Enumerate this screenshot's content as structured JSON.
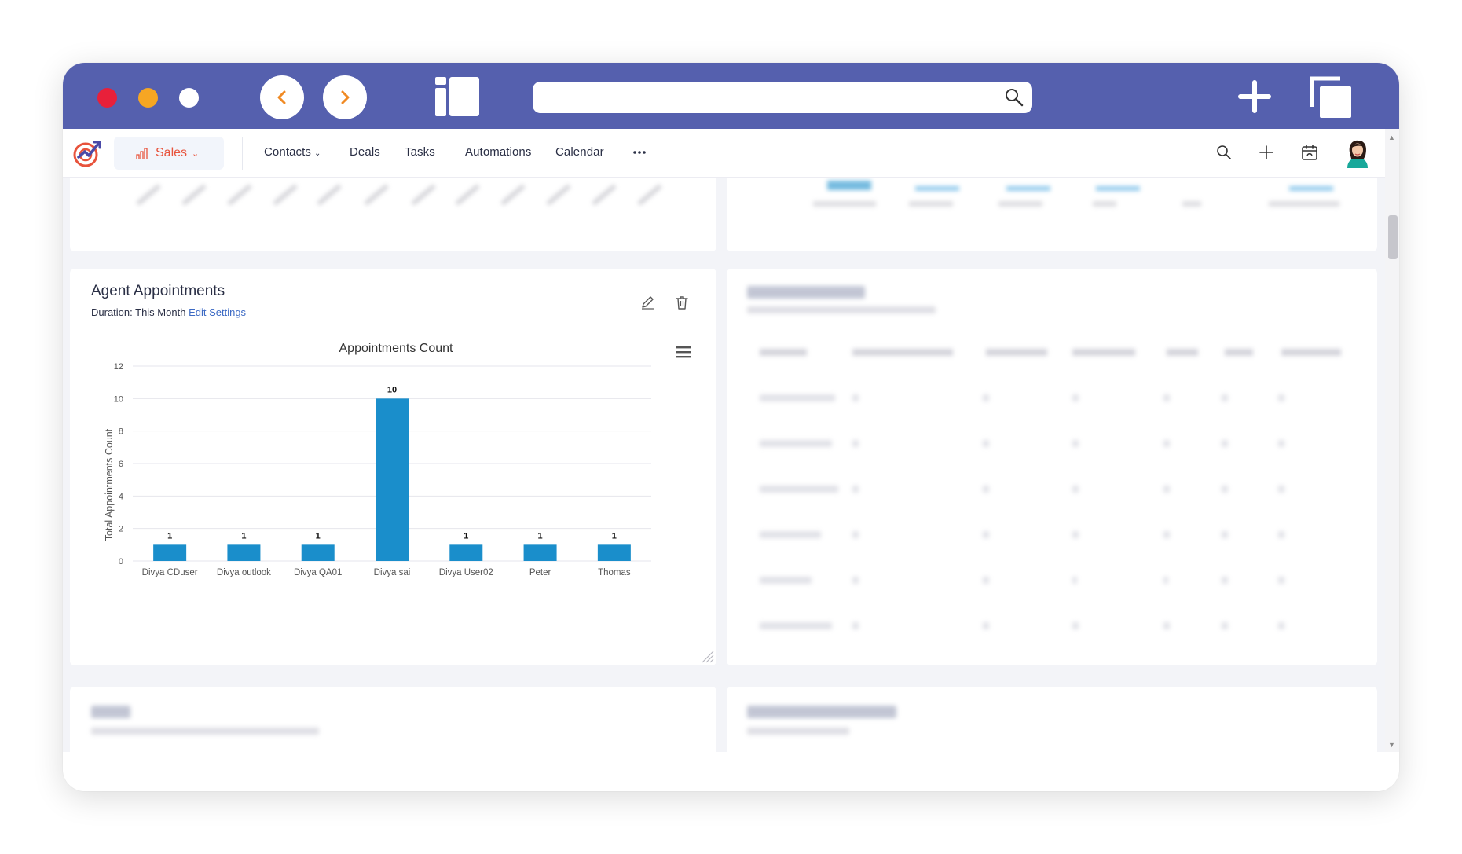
{
  "window": {
    "colors": {
      "titlebar": "#5560ae",
      "close": "#e8203a",
      "minimize": "#f6a623",
      "accent_orange": "#f08a24"
    },
    "url": ""
  },
  "appnav": {
    "module_label": "Sales",
    "links": [
      "Contacts",
      "Deals",
      "Tasks",
      "Automations",
      "Calendar"
    ],
    "more_icon": "ellipsis-icon",
    "right_icons": [
      "search-icon",
      "plus-icon",
      "calendar-icon",
      "avatar"
    ]
  },
  "agent_appointments": {
    "title": "Agent Appointments",
    "duration_label": "Duration: This Month",
    "edit_settings_label": "Edit Settings",
    "actions": [
      "edit-icon",
      "trash-icon"
    ],
    "menu_icon": "hamburger-menu-icon"
  },
  "chart_data": {
    "type": "bar",
    "title": "Appointments Count",
    "xlabel": "",
    "ylabel": "Total Appointments Count",
    "categories": [
      "Divya CDuser",
      "Divya outlook",
      "Divya QA01",
      "Divya sai",
      "Divya User02",
      "Peter",
      "Thomas"
    ],
    "values": [
      1,
      1,
      1,
      10,
      1,
      1,
      1
    ],
    "ylim": [
      0,
      12
    ],
    "yticks": [
      "0",
      "2",
      "4",
      "6",
      "8",
      "10",
      "12"
    ],
    "grid": true,
    "legend": "none",
    "bar_color": "#1a8ecb"
  }
}
